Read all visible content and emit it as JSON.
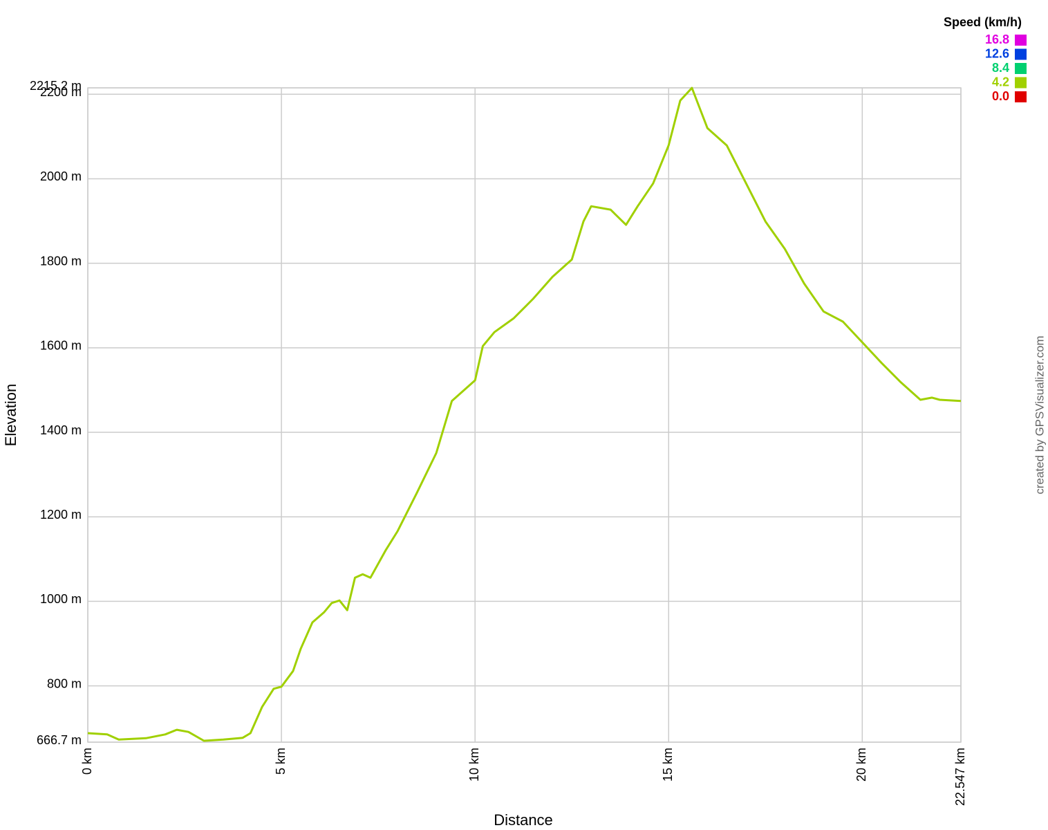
{
  "chart_data": {
    "type": "line",
    "x_label": "Distance",
    "y_label": "Elevation",
    "credit": "created by GPSVisualizer.com",
    "legend": {
      "title": "Speed (km/h)",
      "items": [
        {
          "label": "16.8",
          "color": "#e000e0"
        },
        {
          "label": "12.6",
          "color": "#0040e0"
        },
        {
          "label": "8.4",
          "color": "#00d070"
        },
        {
          "label": "4.2",
          "color": "#a0d000"
        },
        {
          "label": "0.0",
          "color": "#e00000"
        }
      ]
    },
    "x": [
      0,
      0.5,
      0.8,
      1.5,
      2.0,
      2.3,
      2.6,
      3.0,
      3.5,
      4.0,
      4.2,
      4.5,
      4.8,
      5.0,
      5.3,
      5.5,
      5.8,
      6.1,
      6.3,
      6.5,
      6.7,
      6.9,
      7.1,
      7.3,
      7.7,
      8.0,
      8.5,
      9.0,
      9.4,
      10.0,
      10.2,
      10.5,
      11.0,
      11.5,
      12.0,
      12.5,
      12.8,
      13.0,
      13.5,
      13.9,
      14.2,
      14.6,
      15.0,
      15.3,
      15.6,
      16.0,
      16.5,
      17.0,
      17.5,
      18.0,
      18.5,
      19.0,
      19.5,
      20.0,
      20.5,
      21.0,
      21.5,
      21.8,
      22.0,
      22.547
    ],
    "series": [
      {
        "name": "Elevation",
        "color": "#a0d000",
        "values": [
          688,
          685,
          673,
          676,
          685,
          696,
          691,
          670,
          673,
          677,
          688,
          750,
          793,
          798,
          835,
          888,
          950,
          974,
          996,
          1002,
          979,
          1056,
          1064,
          1056,
          1122,
          1166,
          1257,
          1351,
          1474,
          1523,
          1604,
          1637,
          1670,
          1716,
          1768,
          1809,
          1899,
          1935,
          1927,
          1891,
          1935,
          1989,
          2079,
          2185,
          2215,
          2120,
          2079,
          1989,
          1899,
          1834,
          1752,
          1686,
          1662,
          1613,
          1564,
          1518,
          1477,
          1482,
          1477,
          1474
        ]
      }
    ],
    "xlim": [
      0,
      22.547
    ],
    "xticks": [
      {
        "value": 0,
        "label": "0 km"
      },
      {
        "value": 5,
        "label": "5 km"
      },
      {
        "value": 10,
        "label": "10 km"
      },
      {
        "value": 15,
        "label": "15 km"
      },
      {
        "value": 20,
        "label": "20 km"
      },
      {
        "value": 22.547,
        "label": "22.547 km"
      }
    ],
    "ylim": [
      666.7,
      2215.2
    ],
    "yticks": [
      {
        "value": 666.7,
        "label": "666.7 m"
      },
      {
        "value": 800,
        "label": "800 m"
      },
      {
        "value": 1000,
        "label": "1000 m"
      },
      {
        "value": 1200,
        "label": "1200 m"
      },
      {
        "value": 1400,
        "label": "1400 m"
      },
      {
        "value": 1600,
        "label": "1600 m"
      },
      {
        "value": 1800,
        "label": "1800 m"
      },
      {
        "value": 2000,
        "label": "2000 m"
      },
      {
        "value": 2200,
        "label": "2200 m"
      },
      {
        "value": 2215.2,
        "label": "2215.2 m"
      }
    ],
    "grid": true
  }
}
